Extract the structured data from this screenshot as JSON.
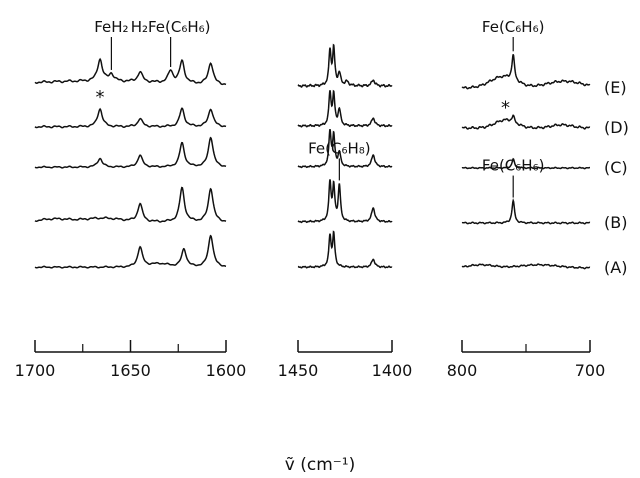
{
  "chart_data": {
    "type": "line",
    "title": "",
    "xlabel": "ṽ (cm⁻¹)",
    "ylabel": "",
    "grid": false,
    "legend": "spectrum labels at right",
    "trace_labels": [
      "(E)",
      "(D)",
      "(C)",
      "(B)",
      "(A)"
    ],
    "panels": [
      {
        "name": "panel-1700-1600",
        "xlim": [
          1700,
          1600
        ],
        "ticks_labeled": [
          "1700",
          "1650",
          "1600"
        ],
        "minor_ticks": [
          1675,
          1625
        ]
      },
      {
        "name": "panel-1450-1400",
        "xlim": [
          1450,
          1400
        ],
        "ticks_labeled": [
          "1450",
          "1400"
        ],
        "minor_ticks": []
      },
      {
        "name": "panel-800-700",
        "xlim": [
          800,
          700
        ],
        "ticks_labeled": [
          "800",
          "700"
        ],
        "minor_ticks": [
          750
        ]
      }
    ],
    "series": [
      {
        "name": "(E)",
        "panels": [
          {
            "baseline": 0.05,
            "noise": 0.03,
            "broad": [
              [
                1670,
                0.12,
                40
              ]
            ],
            "peaks": [
              [
                1666,
                0.55,
                1.5
              ],
              [
                1660,
                0.18,
                1.5
              ],
              [
                1645,
                0.25,
                1.5
              ],
              [
                1629,
                0.3,
                1.5
              ],
              [
                1623,
                0.55,
                1.5
              ],
              [
                1608,
                0.55,
                1.5
              ]
            ]
          },
          {
            "baseline": 0.05,
            "noise": 0.03,
            "broad": [],
            "peaks": [
              [
                1433,
                0.85,
                0.7
              ],
              [
                1431,
                0.9,
                0.7
              ],
              [
                1428,
                0.3,
                0.8
              ],
              [
                1424,
                0.1,
                1.2
              ],
              [
                1410,
                0.15,
                1
              ]
            ]
          },
          {
            "baseline": 0.0,
            "noise": 0.03,
            "broad": [
              [
                768,
                0.28,
                10
              ],
              [
                720,
                0.17,
                14
              ]
            ],
            "peaks": [
              [
                760,
                0.62,
                1.2
              ]
            ]
          }
        ]
      },
      {
        "name": "(D)",
        "panels": [
          {
            "baseline": 0.03,
            "noise": 0.025,
            "broad": [],
            "peaks": [
              [
                1666,
                0.45,
                1.5
              ],
              [
                1645,
                0.2,
                1.5
              ],
              [
                1623,
                0.45,
                1.5
              ],
              [
                1608,
                0.45,
                1.5
              ]
            ]
          },
          {
            "baseline": 0.05,
            "noise": 0.025,
            "broad": [],
            "peaks": [
              [
                1433,
                0.8,
                0.7
              ],
              [
                1431,
                0.75,
                0.7
              ],
              [
                1428,
                0.4,
                0.8
              ],
              [
                1410,
                0.2,
                1
              ]
            ]
          },
          {
            "baseline": 0.0,
            "noise": 0.03,
            "broad": [
              [
                766,
                0.2,
                8
              ],
              [
                722,
                0.08,
                8
              ]
            ],
            "peaks": [
              [
                760,
                0.15,
                1.2
              ]
            ]
          }
        ]
      },
      {
        "name": "(C)",
        "panels": [
          {
            "baseline": 0.02,
            "noise": 0.02,
            "broad": [],
            "peaks": [
              [
                1666,
                0.22,
                1.5
              ],
              [
                1645,
                0.3,
                1.5
              ],
              [
                1623,
                0.6,
                1.5
              ],
              [
                1608,
                0.75,
                1.5
              ]
            ]
          },
          {
            "baseline": 0.03,
            "noise": 0.02,
            "broad": [],
            "peaks": [
              [
                1433,
                0.85,
                0.7
              ],
              [
                1431,
                0.75,
                0.7
              ],
              [
                1428,
                0.35,
                0.8
              ],
              [
                1410,
                0.3,
                1
              ]
            ]
          },
          {
            "baseline": 0.0,
            "noise": 0.015,
            "broad": [],
            "peaks": [
              [
                760,
                0.22,
                1.2
              ]
            ]
          }
        ]
      },
      {
        "name": "(B)",
        "panels": [
          {
            "baseline": 0.02,
            "noise": 0.025,
            "broad": [
              [
                1690,
                0.08,
                8
              ],
              [
                1665,
                0.1,
                10
              ]
            ],
            "peaks": [
              [
                1645,
                0.45,
                1.5
              ],
              [
                1623,
                0.85,
                1.5
              ],
              [
                1608,
                0.85,
                1.5
              ]
            ]
          },
          {
            "baseline": 0.03,
            "noise": 0.02,
            "broad": [],
            "peaks": [
              [
                1433,
                0.95,
                0.7
              ],
              [
                1431,
                0.85,
                0.7
              ],
              [
                1428,
                0.9,
                0.7
              ],
              [
                1410,
                0.35,
                1
              ]
            ]
          },
          {
            "baseline": 0.0,
            "noise": 0.02,
            "broad": [],
            "peaks": [
              [
                760,
                0.55,
                1.2
              ]
            ]
          }
        ]
      },
      {
        "name": "(A)",
        "panels": [
          {
            "baseline": 0.02,
            "noise": 0.02,
            "broad": [
              [
                1635,
                0.08,
                5
              ]
            ],
            "peaks": [
              [
                1645,
                0.5,
                1.5
              ],
              [
                1622,
                0.45,
                1.5
              ],
              [
                1608,
                0.8,
                1.5
              ]
            ]
          },
          {
            "baseline": 0.02,
            "noise": 0.02,
            "broad": [],
            "peaks": [
              [
                1433,
                0.75,
                0.7
              ],
              [
                1431,
                0.8,
                0.7
              ],
              [
                1410,
                0.2,
                1
              ]
            ]
          },
          {
            "baseline": 0.0,
            "noise": 0.02,
            "broad": [
              [
                785,
                0.08,
                10
              ],
              [
                740,
                0.08,
                15
              ]
            ],
            "peaks": []
          }
        ]
      }
    ],
    "annotations": [
      {
        "text": "FeH₂",
        "panel": 0,
        "series": "(E)",
        "x": 1660
      },
      {
        "text": "H₂Fe(C₆H₆)",
        "panel": 0,
        "series": "(E)",
        "x": 1629
      },
      {
        "text": "Fe(C₆H₆)",
        "panel": 2,
        "series": "(E)",
        "x": 760
      },
      {
        "text": "*",
        "panel": 0,
        "series": "(D)",
        "x": 1666
      },
      {
        "text": "*",
        "panel": 2,
        "series": "(D)",
        "x": 766
      },
      {
        "text": "Fe(C₆H₈)",
        "panel": 1,
        "series": "(B)",
        "x": 1428
      },
      {
        "text": "Fe(C₆H₆)",
        "panel": 2,
        "series": "(B)",
        "x": 760
      }
    ]
  }
}
